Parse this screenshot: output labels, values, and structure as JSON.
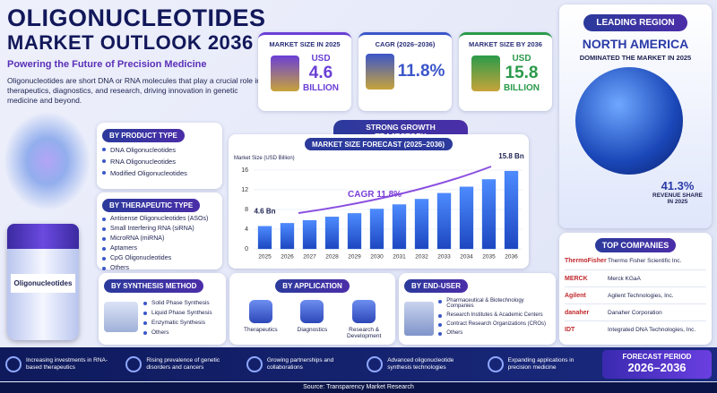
{
  "header": {
    "title_line1": "OLIGONUCLEOTIDES",
    "title_line2": "MARKET OUTLOOK 2036",
    "subtitle": "Powering the Future of Precision Medicine",
    "description": "Oligonucleotides are short DNA or RNA molecules that play a crucial role in therapeutics, diagnostics, and research, driving innovation in genetic medicine and beyond."
  },
  "kpis": [
    {
      "label": "MARKET SIZE IN 2025",
      "lines": [
        "USD",
        "4.6",
        "BILLION"
      ]
    },
    {
      "label": "CAGR (2026–2036)",
      "lines": [
        "11.8%"
      ]
    },
    {
      "label": "MARKET SIZE BY 2036",
      "lines": [
        "USD",
        "15.8",
        "BILLION"
      ]
    }
  ],
  "region": {
    "heading": "LEADING REGION",
    "name": "NORTH AMERICA",
    "note": "DOMINATED THE MARKET IN 2025",
    "share": "41.3%",
    "share_label": "REVENUE SHARE IN 2025"
  },
  "growth_banner": "STRONG GROWTH TRAJECTORY",
  "chart_data": {
    "type": "bar",
    "title": "MARKET SIZE FORECAST (2025–2036)",
    "y_label": "Market Size (USD Billion)",
    "categories": [
      "2025",
      "2026",
      "2027",
      "2028",
      "2029",
      "2030",
      "2031",
      "2032",
      "2033",
      "2034",
      "2035",
      "2036"
    ],
    "values": [
      4.6,
      5.2,
      5.8,
      6.5,
      7.2,
      8.1,
      9.0,
      10.1,
      11.3,
      12.6,
      14.1,
      15.8
    ],
    "value_labels": [
      "4.6 Bn",
      null,
      null,
      null,
      null,
      null,
      null,
      null,
      null,
      null,
      null,
      "15.8 Bn"
    ],
    "color": "#2f6fe0",
    "ylim": [
      0,
      16
    ],
    "yticks": [
      0,
      4,
      8,
      12,
      16
    ],
    "grid": true,
    "annotation": "CAGR 11.8%"
  },
  "product_type": {
    "heading": "BY PRODUCT TYPE",
    "items": [
      "DNA Oligonucleotides",
      "RNA Oligonucleotides",
      "Modified Oligonucleotides"
    ]
  },
  "therapeutic_type": {
    "heading": "BY THERAPEUTIC TYPE",
    "items": [
      "Antisense Oligonucleotides (ASOs)",
      "Small Interfering RNA (siRNA)",
      "MicroRNA (miRNA)",
      "Aptamers",
      "CpG Oligonucleotides",
      "Others"
    ]
  },
  "vial_label": "Oligonucleotides",
  "synthesis": {
    "heading": "BY SYNTHESIS METHOD",
    "items": [
      "Solid Phase Synthesis",
      "Liquid Phase Synthesis",
      "Enzymatic Synthesis",
      "Others"
    ]
  },
  "application": {
    "heading": "BY APPLICATION",
    "items": [
      "Therapeutics",
      "Diagnostics",
      "Research & Development"
    ]
  },
  "end_user": {
    "heading": "BY END-USER",
    "items": [
      "Pharmaceutical & Biotechnology Companies",
      "Research Institutes & Academic Centers",
      "Contract Research Organizations (CROs)",
      "Others"
    ]
  },
  "companies": {
    "heading": "TOP COMPANIES",
    "items": [
      {
        "logo": "ThermoFisher",
        "name": "Thermo Fisher Scientific Inc."
      },
      {
        "logo": "MERCK",
        "name": "Merck KGaA"
      },
      {
        "logo": "Agilent",
        "name": "Agilent Technologies, Inc."
      },
      {
        "logo": "danaher",
        "name": "Danaher Corporation"
      },
      {
        "logo": "IDT",
        "name": "Integrated DNA Technologies, Inc."
      }
    ]
  },
  "drivers": [
    "Increasing investments in RNA-based therapeutics",
    "Rising prevalence of genetic disorders and cancers",
    "Growing partnerships and collaborations",
    "Advanced oligonucleotide synthesis technologies",
    "Expanding applications in precision medicine"
  ],
  "forecast": {
    "label": "FORECAST PERIOD",
    "value": "2026–2036"
  },
  "source": "Source: Transparency Market Research"
}
